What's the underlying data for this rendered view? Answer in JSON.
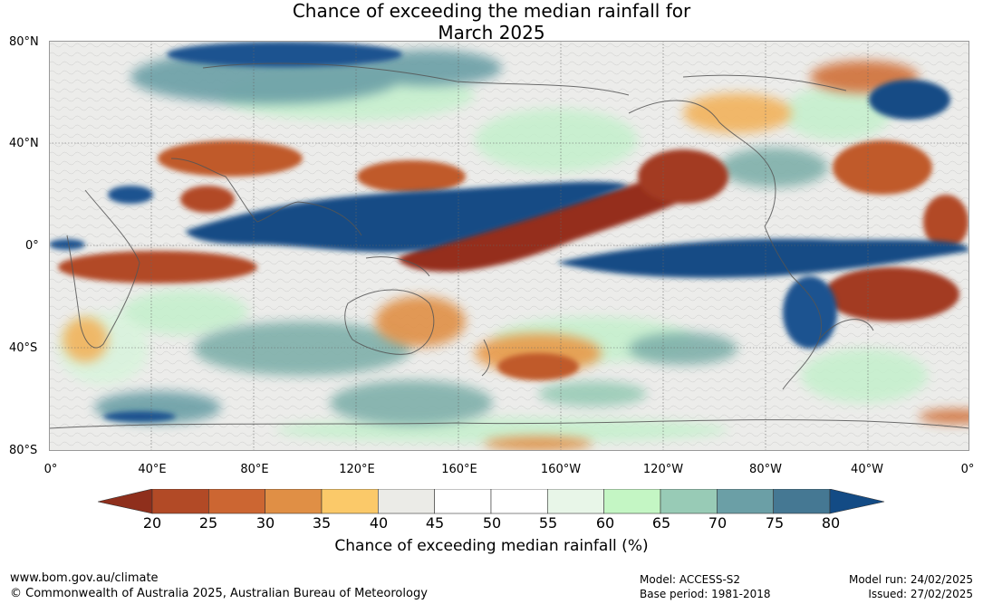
{
  "title": {
    "line1": "Chance of exceeding the median rainfall for",
    "line2": "March 2025"
  },
  "axes": {
    "lat_labels": [
      "80°N",
      "40°N",
      "0°",
      "40°S",
      "80°S"
    ],
    "lon_labels": [
      "0°",
      "40°E",
      "80°E",
      "120°E",
      "160°E",
      "160°W",
      "120°W",
      "80°W",
      "40°W",
      "0°"
    ]
  },
  "colorbar": {
    "label": "Chance of exceeding median rainfall (%)",
    "ticks": [
      "20",
      "25",
      "30",
      "35",
      "40",
      "45",
      "50",
      "55",
      "60",
      "65",
      "70",
      "75",
      "80"
    ],
    "colors": [
      "#8f2f1c",
      "#b24a26",
      "#cc6632",
      "#e08f45",
      "#fbc969",
      "#ebebe7",
      "#ffffff",
      "#ffffff",
      "#e8f6e8",
      "#c4f6c4",
      "#98cbb6",
      "#6b9fa6",
      "#457893",
      "#134b85"
    ]
  },
  "footer": {
    "website": "www.bom.gov.au/climate",
    "copyright": "© Commonwealth of Australia 2025, Australian Bureau of Meteorology",
    "model": "Model: ACCESS-S2",
    "base_period": "Base period: 1981-2018",
    "model_run": "Model run: 24/02/2025",
    "issued": "Issued: 27/02/2025"
  }
}
